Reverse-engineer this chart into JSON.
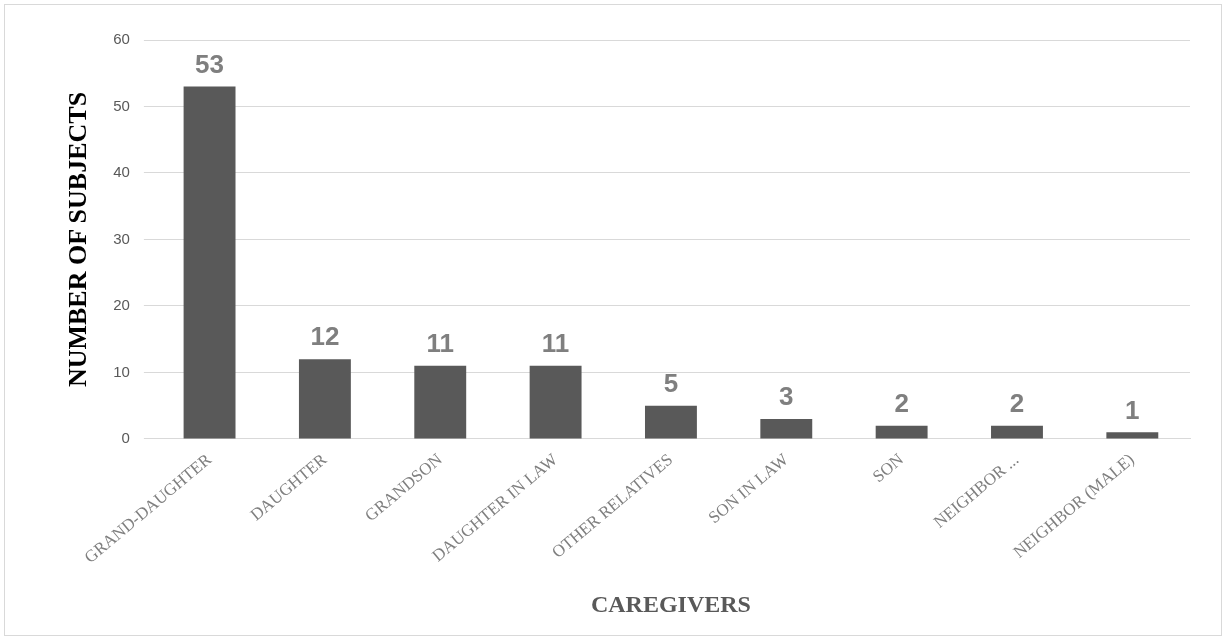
{
  "chart_data": {
    "type": "bar",
    "xlabel": "CAREGIVERS",
    "ylabel": "NUMBER OF SUBJECTS",
    "categories": [
      "GRAND-DAUGHTER",
      "DAUGHTER",
      "GRANDSON",
      "DAUGHTER IN LAW",
      "OTHER RELATIVES",
      "SON IN LAW",
      "SON",
      "NEIGHBOR ...",
      "NEIGHBOR (MALE)"
    ],
    "values": [
      53,
      12,
      11,
      11,
      5,
      3,
      2,
      2,
      1
    ],
    "color": "#595959",
    "ylim": [
      0,
      60
    ],
    "yticks": [
      0,
      10,
      20,
      30,
      40,
      50,
      60
    ],
    "grid": "y",
    "data_labels": true,
    "legend": false
  }
}
